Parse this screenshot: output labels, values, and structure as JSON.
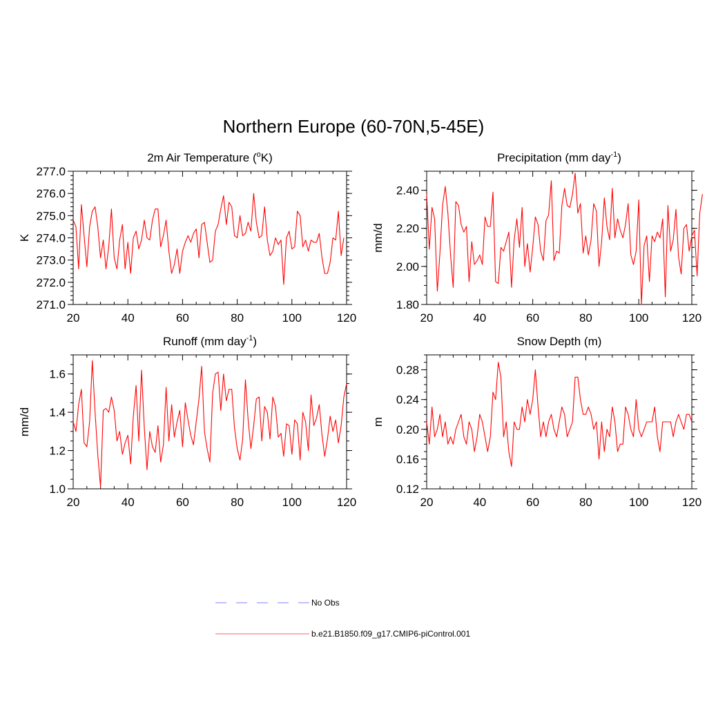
{
  "figure": {
    "title": "Northern Europe (60-70N,5-45E)"
  },
  "legend": {
    "items": [
      {
        "label": "No Obs",
        "style": "dashed",
        "color": "#9999ff"
      },
      {
        "label": "b.e21.B1850.f09_g17.CMIP6-piControl.001",
        "style": "solid",
        "color": "#ff8080"
      }
    ]
  },
  "colors": {
    "series": "#ff0000",
    "frame": "#000000"
  },
  "chart_data": [
    {
      "type": "line",
      "title": "2m Air Temperature (oK)",
      "title_parts": {
        "pre": "2m Air Temperature (",
        "sup": "o",
        "post": "K)"
      },
      "xlabel": "",
      "ylabel": "K",
      "xlim": [
        20,
        120
      ],
      "ylim": [
        271.0,
        277.0
      ],
      "xticks": [
        20,
        40,
        60,
        80,
        100,
        120
      ],
      "yticks": [
        271.0,
        272.0,
        273.0,
        274.0,
        275.0,
        276.0,
        277.0
      ],
      "ytick_labels": [
        "271.0",
        "272.0",
        "273.0",
        "274.0",
        "275.0",
        "276.0",
        "277.0"
      ],
      "minor_y_step": 0.2,
      "x_start": 20,
      "series": [
        {
          "name": "b.e21.B1850.f09_g17.CMIP6-piControl.001",
          "values": [
            274.8,
            274.5,
            272.6,
            275.5,
            274.1,
            272.7,
            274.5,
            275.2,
            275.4,
            274.5,
            273.1,
            273.9,
            272.6,
            273.6,
            275.3,
            273.1,
            272.6,
            273.9,
            274.6,
            272.6,
            273.8,
            272.4,
            274.0,
            274.3,
            273.5,
            273.9,
            274.8,
            274.0,
            273.9,
            274.8,
            275.3,
            275.3,
            273.6,
            274.1,
            274.8,
            273.4,
            272.4,
            272.8,
            273.5,
            272.4,
            273.4,
            273.8,
            274.1,
            273.8,
            274.2,
            274.4,
            273.1,
            274.6,
            274.7,
            273.8,
            272.9,
            273.0,
            274.3,
            274.6,
            275.3,
            275.9,
            274.6,
            275.6,
            275.4,
            274.1,
            274.0,
            275.0,
            274.1,
            274.2,
            274.7,
            274.3,
            276.0,
            274.7,
            274.0,
            274.1,
            275.4,
            273.9,
            273.2,
            273.4,
            274.0,
            273.7,
            273.9,
            271.9,
            274.0,
            274.3,
            273.5,
            273.6,
            275.2,
            275.0,
            273.6,
            273.9,
            273.4,
            273.9,
            273.8,
            273.8,
            274.2,
            273.1,
            272.4,
            272.4,
            272.9,
            274.0,
            273.9,
            275.2,
            273.2,
            274.0
          ]
        }
      ]
    },
    {
      "type": "line",
      "title": "Precipitation (mm day-1)",
      "title_parts": {
        "pre": "Precipitation (mm day",
        "sup": "-1",
        "post": ")"
      },
      "xlabel": "",
      "ylabel": "mm/d",
      "xlim": [
        20,
        120
      ],
      "ylim": [
        1.8,
        2.5
      ],
      "xticks": [
        20,
        40,
        60,
        80,
        100,
        120
      ],
      "yticks": [
        1.8,
        2.0,
        2.2,
        2.4
      ],
      "ytick_labels": [
        "1.80",
        "2.00",
        "2.20",
        "2.40"
      ],
      "minor_y_step": 0.05,
      "x_start": 20,
      "series": [
        {
          "name": "b.e21.B1850.f09_g17.CMIP6-piControl.001",
          "values": [
            2.38,
            2.09,
            2.31,
            2.25,
            1.87,
            2.07,
            2.32,
            2.42,
            2.28,
            2.06,
            1.89,
            2.34,
            2.32,
            2.22,
            2.18,
            2.21,
            1.92,
            2.13,
            2.01,
            2.03,
            2.06,
            2.01,
            2.26,
            2.21,
            2.21,
            2.39,
            1.92,
            1.91,
            2.1,
            2.08,
            2.13,
            2.18,
            1.89,
            2.14,
            2.25,
            2.1,
            2.31,
            2.0,
            2.12,
            1.97,
            2.1,
            2.26,
            2.22,
            2.08,
            2.03,
            2.24,
            2.27,
            2.45,
            2.03,
            2.08,
            2.07,
            2.32,
            2.41,
            2.32,
            2.31,
            2.38,
            2.49,
            2.28,
            2.33,
            2.07,
            2.16,
            2.06,
            2.14,
            2.33,
            2.29,
            2.0,
            2.13,
            2.36,
            2.21,
            2.14,
            2.41,
            2.15,
            2.25,
            2.19,
            2.15,
            2.22,
            2.33,
            2.06,
            2.01,
            2.08,
            2.35,
            1.8,
            2.11,
            2.16,
            1.92,
            2.16,
            2.13,
            2.18,
            2.15,
            2.25,
            1.84,
            2.32,
            2.08,
            2.14,
            2.3,
            2.05,
            1.96,
            2.2,
            2.22,
            2.08,
            2.16,
            2.19,
            1.95,
            2.28,
            2.38
          ]
        }
      ]
    },
    {
      "type": "line",
      "title": "Runoff (mm day-1)",
      "title_parts": {
        "pre": "Runoff (mm day",
        "sup": "-1",
        "post": ")"
      },
      "xlabel": "",
      "ylabel": "mm/d",
      "xlim": [
        20,
        120
      ],
      "ylim": [
        1.0,
        1.7
      ],
      "xticks": [
        20,
        40,
        60,
        80,
        100,
        120
      ],
      "yticks": [
        1.0,
        1.2,
        1.4,
        1.6
      ],
      "ytick_labels": [
        "1.0",
        "1.2",
        "1.4",
        "1.6"
      ],
      "minor_y_step": 0.05,
      "x_start": 20,
      "series": [
        {
          "name": "b.e21.B1850.f09_g17.CMIP6-piControl.001",
          "values": [
            1.35,
            1.3,
            1.44,
            1.52,
            1.24,
            1.22,
            1.35,
            1.67,
            1.4,
            1.18,
            1.01,
            1.41,
            1.42,
            1.4,
            1.48,
            1.41,
            1.25,
            1.3,
            1.18,
            1.24,
            1.28,
            1.13,
            1.38,
            1.54,
            1.25,
            1.62,
            1.32,
            1.1,
            1.3,
            1.22,
            1.19,
            1.33,
            1.14,
            1.23,
            1.53,
            1.25,
            1.44,
            1.27,
            1.35,
            1.41,
            1.22,
            1.45,
            1.36,
            1.28,
            1.23,
            1.35,
            1.47,
            1.64,
            1.3,
            1.21,
            1.14,
            1.5,
            1.6,
            1.61,
            1.41,
            1.6,
            1.46,
            1.52,
            1.52,
            1.32,
            1.21,
            1.15,
            1.26,
            1.57,
            1.36,
            1.21,
            1.33,
            1.47,
            1.48,
            1.25,
            1.43,
            1.4,
            1.26,
            1.48,
            1.43,
            1.27,
            1.29,
            1.17,
            1.34,
            1.33,
            1.18,
            1.36,
            1.34,
            1.15,
            1.4,
            1.35,
            1.2,
            1.49,
            1.33,
            1.37,
            1.44,
            1.28,
            1.17,
            1.26,
            1.38,
            1.3,
            1.36,
            1.24,
            1.33,
            1.48,
            1.55
          ]
        }
      ]
    },
    {
      "type": "line",
      "title": "Snow Depth (m)",
      "title_parts": {
        "pre": "Snow Depth (m)",
        "sup": "",
        "post": ""
      },
      "xlabel": "",
      "ylabel": "m",
      "xlim": [
        20,
        120
      ],
      "ylim": [
        0.12,
        0.3
      ],
      "xticks": [
        20,
        40,
        60,
        80,
        100,
        120
      ],
      "yticks": [
        0.12,
        0.16,
        0.2,
        0.24,
        0.28
      ],
      "ytick_labels": [
        "0.12",
        "0.16",
        "0.20",
        "0.24",
        "0.28"
      ],
      "minor_y_step": 0.01,
      "x_start": 20,
      "series": [
        {
          "name": "b.e21.B1850.f09_g17.CMIP6-piControl.001",
          "values": [
            0.21,
            0.18,
            0.23,
            0.19,
            0.2,
            0.22,
            0.19,
            0.21,
            0.18,
            0.19,
            0.18,
            0.2,
            0.21,
            0.22,
            0.19,
            0.18,
            0.21,
            0.2,
            0.17,
            0.19,
            0.22,
            0.21,
            0.19,
            0.17,
            0.19,
            0.25,
            0.24,
            0.29,
            0.27,
            0.19,
            0.21,
            0.17,
            0.15,
            0.21,
            0.2,
            0.2,
            0.23,
            0.21,
            0.24,
            0.22,
            0.24,
            0.28,
            0.23,
            0.19,
            0.21,
            0.19,
            0.21,
            0.22,
            0.2,
            0.19,
            0.21,
            0.23,
            0.22,
            0.19,
            0.2,
            0.21,
            0.27,
            0.27,
            0.24,
            0.22,
            0.22,
            0.23,
            0.22,
            0.2,
            0.21,
            0.16,
            0.21,
            0.17,
            0.2,
            0.19,
            0.23,
            0.21,
            0.17,
            0.18,
            0.18,
            0.23,
            0.22,
            0.2,
            0.19,
            0.24,
            0.2,
            0.19,
            0.2,
            0.21,
            0.21,
            0.21,
            0.23,
            0.19,
            0.17,
            0.21,
            0.21,
            0.21,
            0.21,
            0.19,
            0.21,
            0.22,
            0.21,
            0.2,
            0.22,
            0.22,
            0.21
          ]
        }
      ]
    }
  ]
}
